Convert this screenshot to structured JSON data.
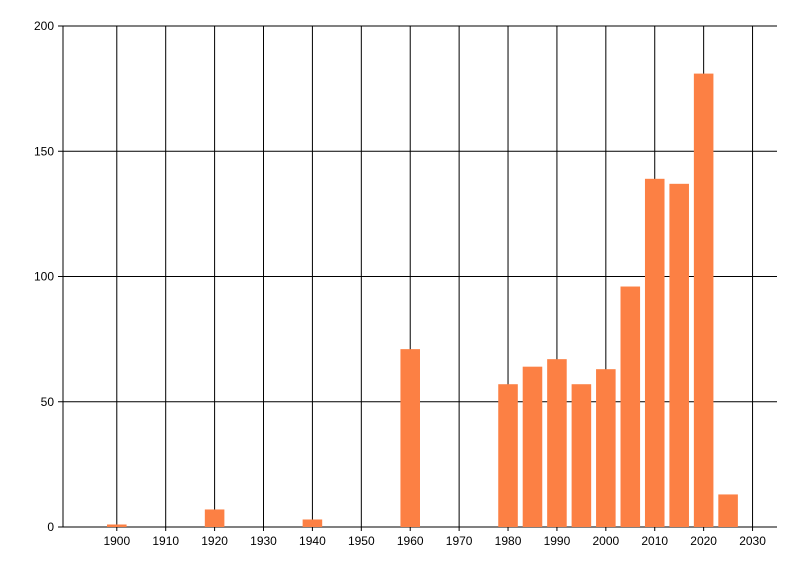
{
  "chart_data": {
    "type": "bar",
    "title": "",
    "xlabel": "",
    "ylabel": "",
    "x": [
      1900,
      1920,
      1940,
      1960,
      1980,
      1985,
      1990,
      1995,
      2000,
      2005,
      2010,
      2015,
      2020,
      2025
    ],
    "values": [
      1,
      7,
      3,
      71,
      57,
      64,
      67,
      57,
      63,
      96,
      139,
      137,
      181,
      13
    ],
    "xlim": [
      1889,
      2035
    ],
    "ylim": [
      0,
      200
    ],
    "x_ticks": [
      1900,
      1910,
      1920,
      1930,
      1940,
      1950,
      1960,
      1970,
      1980,
      1990,
      2000,
      2010,
      2020,
      2030
    ],
    "y_ticks": [
      0,
      50,
      100,
      150,
      200
    ],
    "grid": true,
    "legend": "none",
    "bar_width_years": 4,
    "bar_color": "#FC8044",
    "axis_color": "#000000",
    "grid_color": "#000000",
    "tick_label_color": "#000000",
    "background_color": "#FFFFFF",
    "tick_font_size": 12
  }
}
